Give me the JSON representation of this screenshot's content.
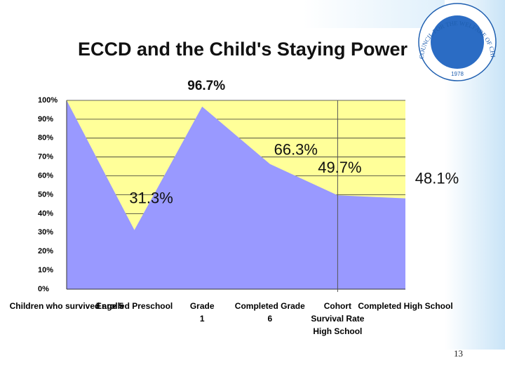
{
  "chart_data": {
    "type": "area",
    "title": "ECCD and the Child's Staying Power",
    "categories": [
      "Children who survived age 5",
      "Enrolled Preschool",
      "Grade 1",
      "Completed Grade 6",
      "Cohort Survival Rate High School",
      "Completed High School"
    ],
    "values": [
      100,
      31.3,
      96.7,
      66.3,
      49.7,
      48.1
    ],
    "value_labels": [
      null,
      "31.3%",
      "96.7%",
      "66.3%",
      "49.7%",
      "48.1%"
    ],
    "color": "#9999ff",
    "background": "#ffff99",
    "ylim": [
      0,
      100
    ],
    "yticks": [
      {
        "value": 0,
        "label": "0%"
      },
      {
        "value": 10,
        "label": "10%"
      },
      {
        "value": 20,
        "label": "20%"
      },
      {
        "value": 30,
        "label": "30%"
      },
      {
        "value": 40,
        "label": "40%"
      },
      {
        "value": 50,
        "label": "50%"
      },
      {
        "value": 60,
        "label": "60%"
      },
      {
        "value": 70,
        "label": "70%"
      },
      {
        "value": 80,
        "label": "80%"
      },
      {
        "value": 90,
        "label": "90%"
      },
      {
        "value": 100,
        "label": "100%"
      }
    ],
    "grid": true
  },
  "logo": {
    "text": "COUNCIL FOR THE WELFARE OF CHILDREN",
    "year": "1978"
  },
  "page_number": "13"
}
